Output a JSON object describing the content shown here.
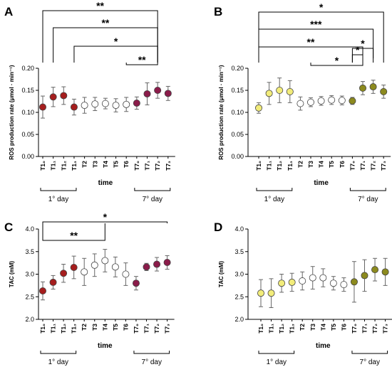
{
  "chart_data": [
    {
      "type": "scatter",
      "panel_label": "A",
      "ylabel": "ROS production rate (μmol · min⁻¹)",
      "xlabel": "time",
      "ylim": [
        0,
        0.2
      ],
      "yticks": [
        "0.00",
        "0.05",
        "0.10",
        "0.15",
        "0.20"
      ],
      "categories": [
        "T1₀",
        "T1₁",
        "T1₂",
        "T1₃",
        "T2",
        "T3",
        "T4",
        "T5",
        "T6",
        "T7₀",
        "T7₁",
        "T7₂",
        "T7₃"
      ],
      "values": [
        0.112,
        0.135,
        0.138,
        0.112,
        0.116,
        0.119,
        0.12,
        0.116,
        0.118,
        0.121,
        0.142,
        0.15,
        0.143
      ],
      "errors": [
        0.025,
        0.022,
        0.02,
        0.018,
        0.018,
        0.015,
        0.012,
        0.015,
        0.016,
        0.014,
        0.025,
        0.018,
        0.016
      ],
      "colors": [
        "#a51d1d",
        "#a51d1d",
        "#a51d1d",
        "#a51d1d",
        "#ffffff",
        "#ffffff",
        "#ffffff",
        "#ffffff",
        "#ffffff",
        "#8b1c4a",
        "#8b1c4a",
        "#8b1c4a",
        "#8b1c4a"
      ],
      "brackets": [
        {
          "from": 0,
          "to": 11,
          "label": "**"
        },
        {
          "from": 1,
          "to": 11,
          "label": "**"
        },
        {
          "from": 3,
          "to": 11,
          "label": "*"
        },
        {
          "from": 8,
          "to": 11,
          "label": "**"
        }
      ],
      "day_groups": [
        {
          "label": "1° day",
          "from": 0,
          "to": 3
        },
        {
          "label": "7° day",
          "from": 9,
          "to": 12
        }
      ]
    },
    {
      "type": "scatter",
      "panel_label": "B",
      "ylabel": "ROS production rate (μmol · min⁻¹)",
      "xlabel": "time",
      "ylim": [
        0,
        0.2
      ],
      "yticks": [
        "0.00",
        "0.05",
        "0.10",
        "0.15",
        "0.20"
      ],
      "categories": [
        "T1₀",
        "T1₁",
        "T1₂",
        "T1₃",
        "T2",
        "T3",
        "T4",
        "T5",
        "T6",
        "T7₀",
        "T7₁",
        "T7₂",
        "T7₃"
      ],
      "values": [
        0.11,
        0.143,
        0.15,
        0.147,
        0.12,
        0.123,
        0.126,
        0.128,
        0.127,
        0.126,
        0.155,
        0.158,
        0.147
      ],
      "errors": [
        0.012,
        0.025,
        0.028,
        0.025,
        0.015,
        0.01,
        0.01,
        0.01,
        0.01,
        0.008,
        0.015,
        0.015,
        0.015
      ],
      "colors": [
        "#f2ec7a",
        "#f2ec7a",
        "#f2ec7a",
        "#f2ec7a",
        "#ffffff",
        "#ffffff",
        "#ffffff",
        "#ffffff",
        "#ffffff",
        "#8c8a1e",
        "#8c8a1e",
        "#8c8a1e",
        "#8c8a1e"
      ],
      "brackets": [
        {
          "from": 0,
          "to": 12,
          "label": "*"
        },
        {
          "from": 0,
          "to": 11,
          "label": "***"
        },
        {
          "from": 0,
          "to": 10,
          "label": "**"
        },
        {
          "from": 9,
          "to": 11,
          "label": "*"
        },
        {
          "from": 9,
          "to": 10,
          "label": "*"
        },
        {
          "from": 5,
          "to": 10,
          "label": "*"
        }
      ],
      "day_groups": [
        {
          "label": "1° day",
          "from": 0,
          "to": 3
        },
        {
          "label": "7° day",
          "from": 9,
          "to": 12
        }
      ]
    },
    {
      "type": "scatter",
      "panel_label": "C",
      "ylabel": "TAC (mM)",
      "xlabel": "time",
      "ylim": [
        2.0,
        4.0
      ],
      "yticks": [
        "2.0",
        "2.5",
        "3.0",
        "3.5",
        "4.0"
      ],
      "categories": [
        "T1₀",
        "T1₁",
        "T1₂",
        "T1₃",
        "T2",
        "T3",
        "T4",
        "T5",
        "T6",
        "T7₀",
        "T7₁",
        "T7₂",
        "T7₃"
      ],
      "values": [
        2.63,
        2.82,
        3.02,
        3.15,
        3.05,
        3.2,
        3.3,
        3.16,
        3.0,
        2.8,
        3.16,
        3.22,
        3.26
      ],
      "errors": [
        0.2,
        0.15,
        0.2,
        0.25,
        0.3,
        0.25,
        0.25,
        0.22,
        0.25,
        0.15,
        0.08,
        0.15,
        0.15
      ],
      "colors": [
        "#a51d1d",
        "#a51d1d",
        "#a51d1d",
        "#a51d1d",
        "#ffffff",
        "#ffffff",
        "#ffffff",
        "#ffffff",
        "#ffffff",
        "#8b1c4a",
        "#8b1c4a",
        "#8b1c4a",
        "#8b1c4a"
      ],
      "brackets": [
        {
          "from": 0,
          "to": 12,
          "label": "*"
        },
        {
          "from": 0,
          "to": 6,
          "label": "**"
        }
      ],
      "day_groups": [
        {
          "label": "1° day",
          "from": 0,
          "to": 3
        },
        {
          "label": "7° day",
          "from": 9,
          "to": 12
        }
      ]
    },
    {
      "type": "scatter",
      "panel_label": "D",
      "ylabel": "TAC (mM)",
      "xlabel": "time",
      "ylim": [
        2.0,
        4.0
      ],
      "yticks": [
        "2.0",
        "2.5",
        "3.0",
        "3.5",
        "4.0"
      ],
      "categories": [
        "T1₀",
        "T1₁",
        "T1₂",
        "T1₃",
        "T2",
        "T3",
        "T4",
        "T5",
        "T6",
        "T7₀",
        "T7₁",
        "T7₂",
        "T7₃"
      ],
      "values": [
        2.58,
        2.58,
        2.8,
        2.82,
        2.85,
        2.92,
        2.92,
        2.8,
        2.77,
        2.83,
        2.97,
        3.1,
        3.05
      ],
      "errors": [
        0.3,
        0.32,
        0.2,
        0.2,
        0.2,
        0.25,
        0.2,
        0.15,
        0.15,
        0.45,
        0.35,
        0.25,
        0.3
      ],
      "colors": [
        "#f2ec7a",
        "#f2ec7a",
        "#f2ec7a",
        "#f2ec7a",
        "#ffffff",
        "#ffffff",
        "#ffffff",
        "#ffffff",
        "#ffffff",
        "#8c8a1e",
        "#8c8a1e",
        "#8c8a1e",
        "#8c8a1e"
      ],
      "brackets": [],
      "day_groups": [
        {
          "label": "1° day",
          "from": 0,
          "to": 3
        },
        {
          "label": "7° day",
          "from": 9,
          "to": 12
        }
      ]
    }
  ]
}
